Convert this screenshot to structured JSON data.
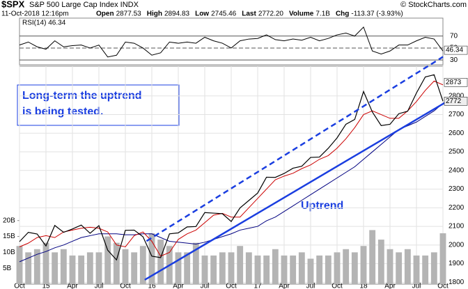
{
  "chart_data": {
    "type": "line",
    "title": "$SPX",
    "subtitle": "S&P 500 Large Cap Index INDX",
    "source": "© StockCharts.com",
    "date": "11-Oct-2018 12:16pm",
    "quote": [
      {
        "label": "Open",
        "value": "2877.53"
      },
      {
        "label": "High",
        "value": "2894.83"
      },
      {
        "label": "Low",
        "value": "2745.46"
      },
      {
        "label": "Last",
        "value": "2772.20"
      },
      {
        "label": "Volume",
        "value": "7.1B"
      },
      {
        "label": "Chg",
        "value": "-113.37 (-3.93%)"
      }
    ],
    "categories": [
      "Oct",
      null,
      null,
      "15",
      null,
      null,
      "Apr",
      null,
      null,
      "Jul",
      null,
      null,
      "Oct",
      null,
      null,
      "16",
      null,
      null,
      "Apr",
      null,
      null,
      "Jul",
      null,
      null,
      "Oct",
      null,
      null,
      "17",
      null,
      null,
      "Apr",
      null,
      null,
      "Jul",
      null,
      null,
      "Oct",
      null,
      null,
      "18",
      null,
      null,
      "Apr",
      null,
      null,
      "Jul",
      null,
      null,
      "Oct"
    ],
    "close": {
      "color": "#000000",
      "values": [
        2018,
        2068,
        2059,
        1995,
        2105,
        2068,
        2086,
        2107,
        2063,
        2104,
        1972,
        1920,
        2079,
        2080,
        2044,
        1940,
        1932,
        2060,
        2065,
        2097,
        2099,
        2174,
        2171,
        2168,
        2126,
        2199,
        2239,
        2279,
        2364,
        2363,
        2384,
        2412,
        2423,
        2470,
        2472,
        2519,
        2575,
        2648,
        2674,
        2824,
        2714,
        2641,
        2648,
        2705,
        2718,
        2816,
        2902,
        2914,
        2772
      ]
    },
    "ma_fast": {
      "color": "#cc0000",
      "values": [
        1990,
        2010,
        2040,
        2050,
        2040,
        2070,
        2080,
        2090,
        2095,
        2090,
        2070,
        2000,
        1990,
        2050,
        2070,
        2020,
        1940,
        1960,
        2030,
        2060,
        2080,
        2120,
        2160,
        2170,
        2150,
        2150,
        2200,
        2250,
        2300,
        2350,
        2370,
        2385,
        2410,
        2430,
        2460,
        2480,
        2520,
        2570,
        2630,
        2700,
        2720,
        2700,
        2680,
        2680,
        2720,
        2770,
        2830,
        2880,
        2860
      ]
    },
    "ma_slow": {
      "color": "#000080",
      "values": [
        1910,
        1930,
        1950,
        1965,
        1985,
        2000,
        2020,
        2040,
        2050,
        2060,
        2060,
        2060,
        2055,
        2055,
        2060,
        2060,
        2040,
        2020,
        2015,
        2010,
        2005,
        2015,
        2030,
        2045,
        2060,
        2080,
        2090,
        2100,
        2130,
        2150,
        2180,
        2210,
        2240,
        2270,
        2300,
        2330,
        2360,
        2390,
        2420,
        2460,
        2500,
        2540,
        2580,
        2620,
        2640,
        2660,
        2690,
        2720,
        2760
      ]
    },
    "ylim": [
      1790,
      2960
    ],
    "yticks": [
      1800,
      1900,
      2000,
      2100,
      2200,
      2300,
      2400,
      2500,
      2600,
      2700,
      2800
    ],
    "price_tags": [
      2873,
      2772
    ],
    "volume": {
      "color": "#b4b4b4",
      "values": [
        12,
        10,
        11,
        13,
        10,
        11,
        9,
        9,
        10,
        10,
        15,
        13,
        11,
        10,
        12,
        16,
        14,
        12,
        10,
        10,
        13,
        9,
        9,
        10,
        10,
        12,
        10,
        9,
        9,
        11,
        9,
        9,
        10,
        8,
        9,
        9,
        10,
        11,
        10,
        12,
        17,
        14,
        11,
        10,
        11,
        9,
        9,
        10,
        16
      ]
    },
    "volume_ylim": [
      0,
      23
    ],
    "volume_ticks": [
      {
        "value": 5,
        "label": "5B"
      },
      {
        "value": 10,
        "label": "10B"
      },
      {
        "value": 15,
        "label": "15B"
      },
      {
        "value": 20,
        "label": "20B"
      }
    ],
    "rsi_label": "RSI(14) 46.34",
    "rsi": {
      "color": "#000000",
      "values": [
        55,
        60,
        52,
        48,
        62,
        52,
        54,
        55,
        50,
        55,
        35,
        38,
        60,
        58,
        50,
        38,
        42,
        60,
        58,
        60,
        58,
        68,
        62,
        58,
        50,
        62,
        65,
        66,
        72,
        64,
        62,
        65,
        63,
        68,
        62,
        66,
        72,
        75,
        70,
        85,
        45,
        40,
        45,
        55,
        55,
        62,
        68,
        65,
        45
      ]
    },
    "rsi_ylim": [
      22,
      100
    ],
    "rsi_ticks": [
      30,
      50,
      70
    ],
    "rsi_tag": 46.34,
    "trend_lines": [
      {
        "start_index": 14.2,
        "start_value": 1813,
        "end_index": 48.3,
        "end_value": 2766,
        "dashed": false,
        "color": "#1a3ee0"
      },
      {
        "start_index": 14.4,
        "start_value": 2021,
        "end_index": 48,
        "end_value": 3010,
        "dashed": true,
        "color": "#1a3ee0"
      }
    ],
    "annotations": [
      "Long-term the uptrend",
      "is being tested.",
      "Uptrend"
    ],
    "grid": true
  }
}
